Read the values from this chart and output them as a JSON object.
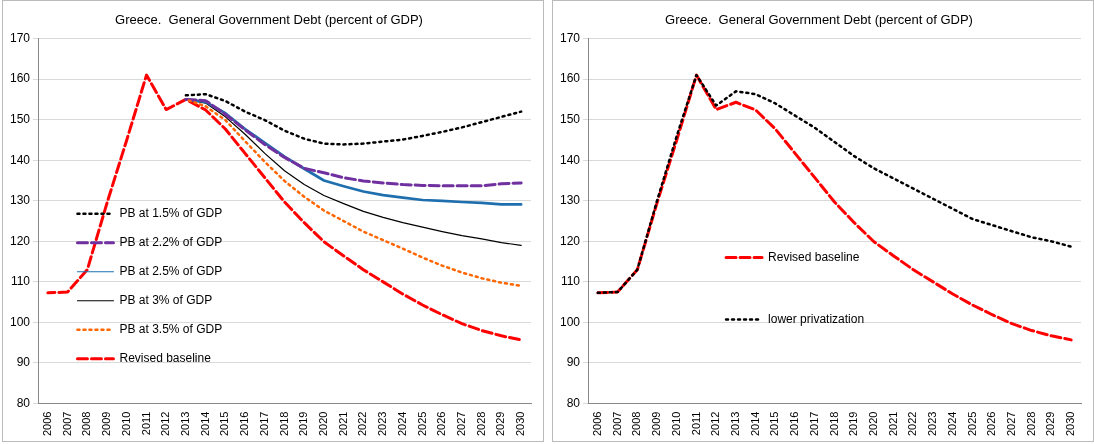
{
  "chart_data": [
    {
      "type": "line",
      "title": "Greece.  General Government Debt (percent of GDP)",
      "categories": [
        "2006",
        "2007",
        "2008",
        "2009",
        "2010",
        "2011",
        "2012",
        "2013",
        "2014",
        "2015",
        "2016",
        "2017",
        "2018",
        "2019",
        "2020",
        "2021",
        "2022",
        "2023",
        "2024",
        "2025",
        "2026",
        "2027",
        "2028",
        "2029",
        "2030"
      ],
      "ylim": [
        80,
        170
      ],
      "yticks": [
        80,
        90,
        100,
        110,
        120,
        130,
        140,
        150,
        160,
        170
      ],
      "grid": "y",
      "legend": "bottom left",
      "marker": "none",
      "series": [
        {
          "name": "PB at 1.5% of GDP",
          "color": "#000000",
          "line_style": "dotted",
          "values": [
            null,
            null,
            null,
            null,
            null,
            null,
            null,
            156,
            156.3,
            154.6,
            152,
            149.9,
            147.3,
            145.3,
            144.1,
            143.9,
            144.1,
            144.6,
            145.1,
            146,
            147,
            148.1,
            149.4,
            150.7,
            152
          ]
        },
        {
          "name": "PB at 2.2% of GDP",
          "color": "#7030a0",
          "line_style": "dashed",
          "values": [
            null,
            null,
            null,
            null,
            null,
            null,
            null,
            155,
            154.7,
            151.3,
            147.5,
            143.9,
            140.7,
            138,
            136.9,
            135.7,
            134.9,
            134.4,
            134,
            133.8,
            133.7,
            133.7,
            133.7,
            134.2,
            134.4
          ]
        },
        {
          "name": "PB at 2.5% of GDP",
          "color": "#1f6fae",
          "line_style": "solid",
          "values": [
            null,
            null,
            null,
            null,
            null,
            null,
            null,
            155,
            154.4,
            151.6,
            147.7,
            144.3,
            140.9,
            137.9,
            135,
            133.6,
            132.3,
            131.4,
            130.8,
            130.2,
            130,
            129.7,
            129.5,
            129.1,
            129.1
          ]
        },
        {
          "name": "PB at 3% of GDP",
          "color": "#000000",
          "line_style": "solid",
          "values": [
            null,
            null,
            null,
            null,
            null,
            null,
            null,
            155,
            154.1,
            150.7,
            146.4,
            141.7,
            137.4,
            134,
            131.3,
            129.3,
            127.4,
            125.9,
            124.6,
            123.5,
            122.4,
            121.4,
            120.6,
            119.7,
            119
          ]
        },
        {
          "name": "PB at 3.5% of GDP",
          "color": "#ff6600",
          "line_style": "dotted",
          "values": [
            null,
            null,
            null,
            null,
            null,
            null,
            null,
            155,
            153.3,
            149.9,
            144.7,
            139.6,
            134.9,
            131,
            127.6,
            125,
            122.4,
            120.3,
            118.2,
            116,
            114,
            112.3,
            110.9,
            109.8,
            109
          ]
        },
        {
          "name": "Revised baseline",
          "color": "#ff0000",
          "line_style": "dashed",
          "values": [
            107.3,
            107.5,
            113,
            129.5,
            145,
            161,
            152.5,
            155,
            152.4,
            147.7,
            141.7,
            135.7,
            129.7,
            124.6,
            119.9,
            116.4,
            113,
            110,
            107,
            104.3,
            101.9,
            99.7,
            98,
            96.7,
            95.7
          ]
        }
      ]
    },
    {
      "type": "line",
      "title": "Greece.  General Government Debt (percent of GDP)",
      "categories": [
        "2006",
        "2007",
        "2008",
        "2009",
        "2010",
        "2011",
        "2012",
        "2013",
        "2014",
        "2015",
        "2016",
        "2017",
        "2018",
        "2019",
        "2020",
        "2021",
        "2022",
        "2023",
        "2024",
        "2025",
        "2026",
        "2027",
        "2028",
        "2029",
        "2030"
      ],
      "ylim": [
        80,
        170
      ],
      "yticks": [
        80,
        90,
        100,
        110,
        120,
        130,
        140,
        150,
        160,
        170
      ],
      "grid": "y",
      "legend": "bottom",
      "marker": "none",
      "series": [
        {
          "name": "Revised baseline",
          "color": "#ff0000",
          "line_style": "dashed",
          "values": [
            107.3,
            107.5,
            113,
            129.5,
            145,
            161,
            152.5,
            154.3,
            152.4,
            147.7,
            141.7,
            135.7,
            129.7,
            124.6,
            119.9,
            116.4,
            113,
            110,
            107,
            104.3,
            101.9,
            99.7,
            98,
            96.7,
            95.7
          ]
        },
        {
          "name": "lower privatization",
          "color": "#000000",
          "line_style": "dotted",
          "values": [
            107.3,
            107.5,
            113,
            130,
            146,
            161,
            153.5,
            157,
            156.3,
            154,
            151,
            148,
            144.5,
            141,
            138,
            135.5,
            133,
            130.5,
            128,
            125.5,
            124,
            122.5,
            121,
            120,
            118.7
          ]
        }
      ]
    }
  ]
}
